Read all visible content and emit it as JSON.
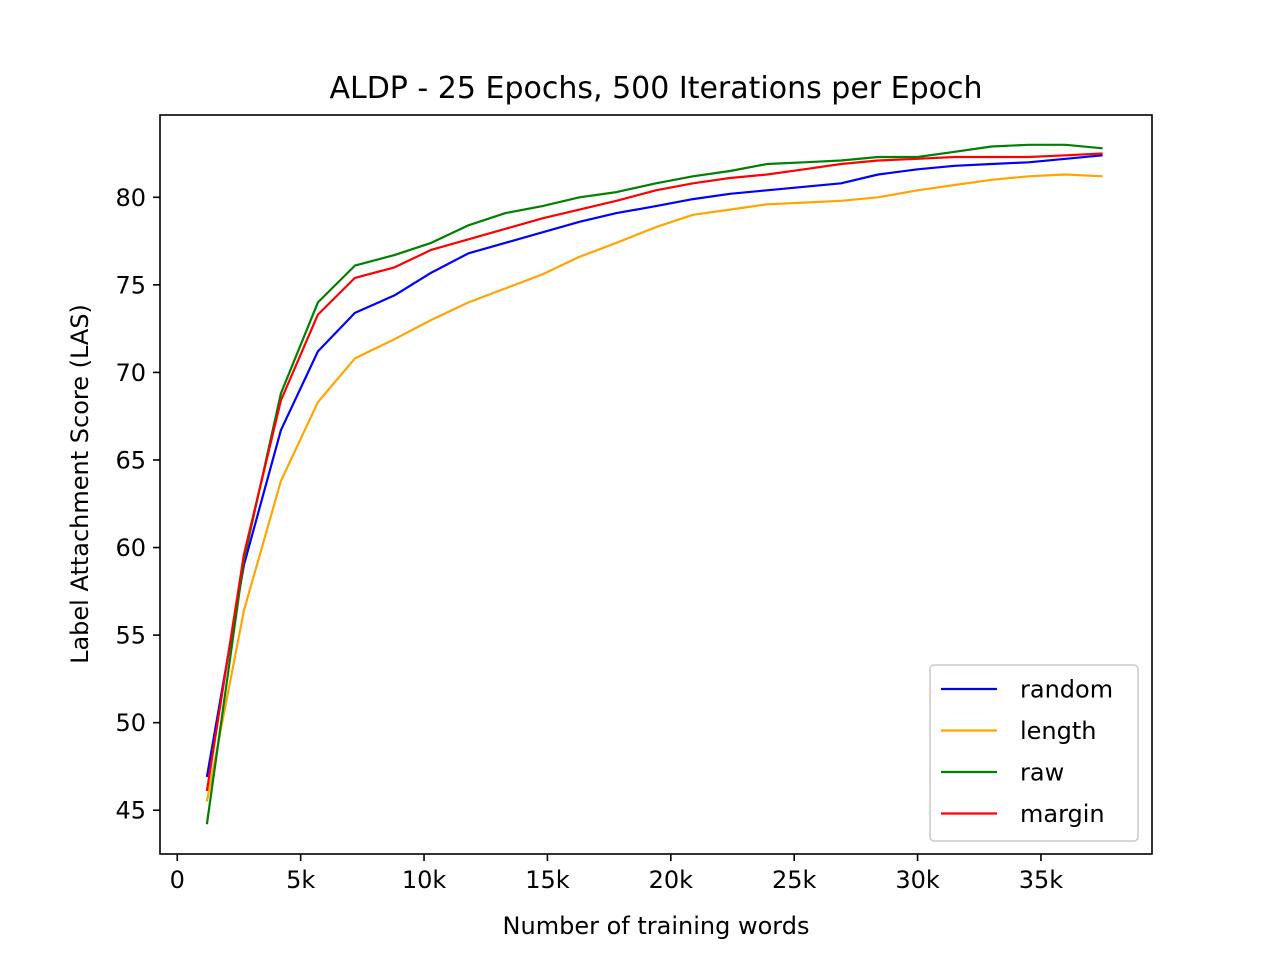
{
  "chart_data": {
    "type": "line",
    "title": "ALDP - 25 Epochs, 500 Iterations per Epoch",
    "xlabel": "Number of training words",
    "ylabel": "Label Attachment Score (LAS)",
    "xlim": [
      -700,
      39500
    ],
    "ylim": [
      42.5,
      84.7
    ],
    "xticks": [
      {
        "value": 0,
        "label": "0"
      },
      {
        "value": 5000,
        "label": "5k"
      },
      {
        "value": 10000,
        "label": "10k"
      },
      {
        "value": 15000,
        "label": "15k"
      },
      {
        "value": 20000,
        "label": "20k"
      },
      {
        "value": 25000,
        "label": "25k"
      },
      {
        "value": 30000,
        "label": "30k"
      },
      {
        "value": 35000,
        "label": "35k"
      }
    ],
    "yticks": [
      {
        "value": 45,
        "label": "45"
      },
      {
        "value": 50,
        "label": "50"
      },
      {
        "value": 55,
        "label": "55"
      },
      {
        "value": 60,
        "label": "60"
      },
      {
        "value": 65,
        "label": "65"
      },
      {
        "value": 70,
        "label": "70"
      },
      {
        "value": 75,
        "label": "75"
      },
      {
        "value": 80,
        "label": "80"
      }
    ],
    "grid": false,
    "legend_position": "lower-right",
    "x": [
      1200,
      2700,
      4200,
      5700,
      7200,
      8800,
      10300,
      11800,
      13300,
      14800,
      16300,
      17800,
      19400,
      20900,
      22400,
      23900,
      25400,
      26900,
      28400,
      30000,
      31500,
      33000,
      34500,
      36000,
      37500
    ],
    "series": [
      {
        "name": "random",
        "color": "#0000ff",
        "values": [
          46.9,
          59.0,
          66.7,
          71.2,
          73.4,
          74.4,
          75.7,
          76.8,
          77.4,
          78.0,
          78.6,
          79.1,
          79.5,
          79.9,
          80.2,
          80.4,
          80.6,
          80.8,
          81.3,
          81.6,
          81.8,
          81.9,
          82.0,
          82.2,
          82.4
        ]
      },
      {
        "name": "length",
        "color": "#ffa500",
        "values": [
          45.5,
          56.4,
          63.8,
          68.3,
          70.8,
          71.9,
          73.0,
          74.0,
          74.8,
          75.6,
          76.6,
          77.4,
          78.3,
          79.0,
          79.3,
          79.6,
          79.7,
          79.8,
          80.0,
          80.4,
          80.7,
          81.0,
          81.2,
          81.3,
          81.2
        ]
      },
      {
        "name": "raw",
        "color": "#008000",
        "values": [
          44.2,
          59.3,
          68.8,
          74.0,
          76.1,
          76.7,
          77.4,
          78.4,
          79.1,
          79.5,
          80.0,
          80.3,
          80.8,
          81.2,
          81.5,
          81.9,
          82.0,
          82.1,
          82.3,
          82.3,
          82.6,
          82.9,
          83.0,
          83.0,
          82.8
        ]
      },
      {
        "name": "margin",
        "color": "#ff0000",
        "values": [
          46.1,
          59.6,
          68.4,
          73.3,
          75.4,
          76.0,
          77.0,
          77.6,
          78.2,
          78.8,
          79.3,
          79.8,
          80.4,
          80.8,
          81.1,
          81.3,
          81.6,
          81.9,
          82.1,
          82.2,
          82.3,
          82.3,
          82.3,
          82.4,
          82.5
        ]
      }
    ]
  }
}
